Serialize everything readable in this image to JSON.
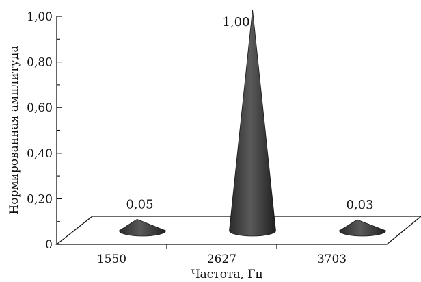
{
  "chart_data": {
    "type": "bar",
    "style": "3d-cone",
    "categories": [
      "1550",
      "2627",
      "3703"
    ],
    "values": [
      0.05,
      1.0,
      0.03
    ],
    "value_labels": [
      "0,05",
      "1,00",
      "0,03"
    ],
    "xlabel": "Частота, Гц",
    "ylabel": "Нормированная амплитуда",
    "ylim": [
      0,
      1.0
    ],
    "yticks": [
      {
        "value": 0,
        "label": "0"
      },
      {
        "value": 0.2,
        "label": "0,20"
      },
      {
        "value": 0.4,
        "label": "0,40"
      },
      {
        "value": 0.6,
        "label": "0,60"
      },
      {
        "value": 0.8,
        "label": "0,80"
      },
      {
        "value": 1.0,
        "label": "1,00"
      }
    ],
    "grid": false,
    "colors": {
      "cone": "#3a3a3a",
      "axis": "#111111"
    }
  }
}
